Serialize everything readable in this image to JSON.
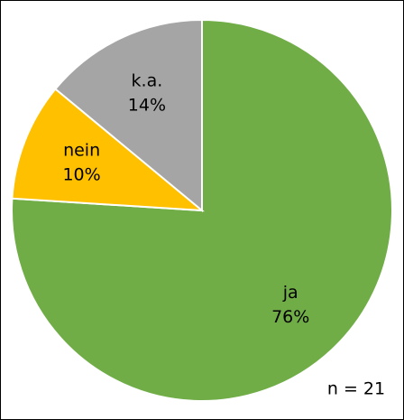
{
  "chart_data": {
    "type": "pie",
    "categories": [
      "ja",
      "nein",
      "k.a."
    ],
    "values": [
      76,
      10,
      14
    ],
    "value_labels": [
      "76%",
      "10%",
      "14%"
    ],
    "colors": [
      "#70ad47",
      "#ffc000",
      "#a5a5a5"
    ],
    "annotation": "n = 21"
  }
}
